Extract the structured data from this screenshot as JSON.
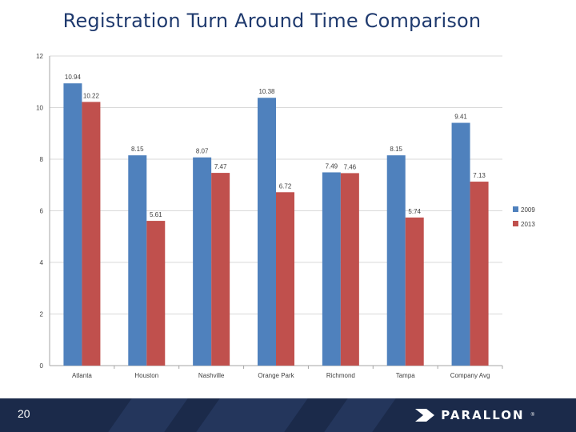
{
  "slide": {
    "title": "Registration Turn Around Time Comparison",
    "page_number": "20",
    "brand": {
      "name": "PARALLON",
      "mark": "®",
      "icon": "arrow-chevron-icon"
    }
  },
  "chart_data": {
    "type": "bar",
    "categories": [
      "Atlanta",
      "Houston",
      "Nashville",
      "Orange Park",
      "Richmond",
      "Tampa",
      "Company Avg"
    ],
    "series": [
      {
        "name": "2009",
        "values": [
          10.94,
          8.15,
          8.07,
          10.38,
          7.49,
          8.15,
          9.41
        ],
        "color": "#4f81bd"
      },
      {
        "name": "2013",
        "values": [
          10.22,
          5.61,
          7.47,
          6.72,
          7.46,
          5.74,
          7.13
        ],
        "color": "#c0504d"
      }
    ],
    "data_labels": [
      [
        "10.94",
        "8.15",
        "8.07",
        "10.38",
        "7.49",
        "8.15",
        "9.41"
      ],
      [
        "10.22",
        "5.61",
        "7.47",
        "6.72",
        "7.46",
        "5.74",
        "7.13"
      ]
    ],
    "y_ticks": [
      "0",
      "2",
      "4",
      "6",
      "8",
      "10",
      "12"
    ],
    "ylim": [
      0,
      12
    ],
    "grid": true,
    "legend_position": "right"
  },
  "colors": {
    "title": "#1f3a6e",
    "gridline": "#d9d9d9",
    "axis": "#a6a6a6",
    "label_text": "#404040",
    "footer_bg": "#1b2a4a"
  }
}
